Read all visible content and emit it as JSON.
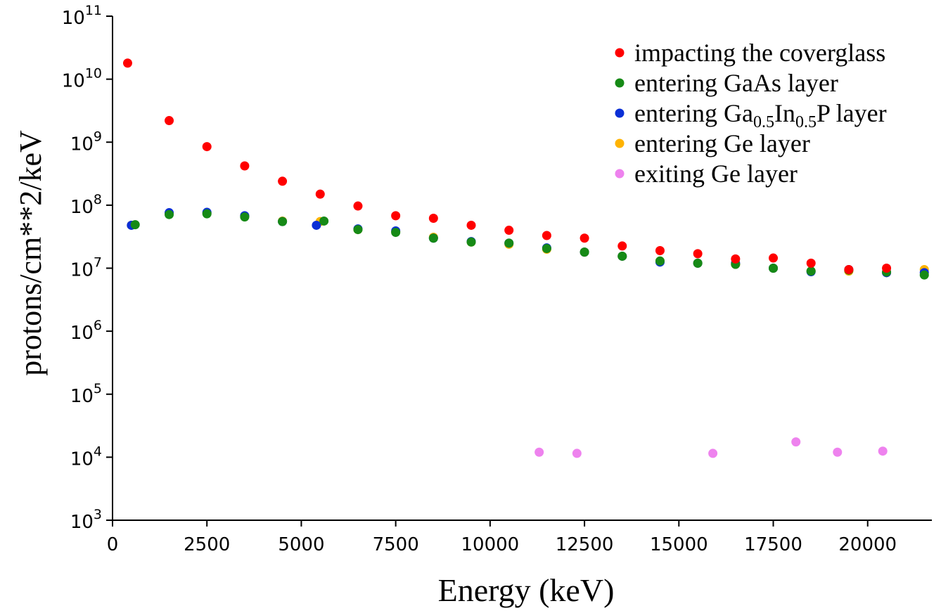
{
  "chart_data": {
    "type": "scatter",
    "title": "",
    "xlabel": "Energy (keV)",
    "ylabel": "protons/cm**2/keV",
    "xscale": "linear",
    "yscale": "log",
    "xlim": [
      0,
      21700
    ],
    "ylim_exponent": [
      3,
      11
    ],
    "x_ticks": [
      0,
      2500,
      5000,
      7500,
      10000,
      12500,
      15000,
      17500,
      20000
    ],
    "x_tick_labels": [
      "0",
      "2500",
      "5000",
      "7500",
      "10000",
      "12500",
      "15000",
      "17500",
      "20000"
    ],
    "y_ticks": [
      {
        "exp": 3,
        "base": "10",
        "sup": "3"
      },
      {
        "exp": 4,
        "base": "10",
        "sup": "4"
      },
      {
        "exp": 5,
        "base": "10",
        "sup": "5"
      },
      {
        "exp": 6,
        "base": "10",
        "sup": "6"
      },
      {
        "exp": 7,
        "base": "10",
        "sup": "7"
      },
      {
        "exp": 8,
        "base": "10",
        "sup": "8"
      },
      {
        "exp": 9,
        "base": "10",
        "sup": "9"
      },
      {
        "exp": 10,
        "base": "10",
        "sup": "10"
      },
      {
        "exp": 11,
        "base": "10",
        "sup": "11"
      }
    ],
    "legend_position": "top-right",
    "series": [
      {
        "name": "entering Ge layer",
        "legend_parts": [
          {
            "t": "entering Ge layer"
          }
        ],
        "color": "#ffb300",
        "x": [
          500,
          1500,
          2500,
          3500,
          4500,
          5500,
          6500,
          7500,
          8500,
          9500,
          10500,
          11500,
          12500,
          13500,
          14500,
          15500,
          16500,
          17500,
          18500,
          19500,
          20500,
          21500
        ],
        "y": [
          48000000,
          73000000,
          75000000,
          67000000,
          56000000,
          55000000,
          41000000,
          38000000,
          31000000,
          26000000,
          24000000,
          20000000,
          18000000,
          15500000,
          13000000,
          12000000,
          11500000,
          10000000,
          9000000,
          9000000,
          8500000,
          9500000
        ]
      },
      {
        "name": "entering Ga0.5In0.5P layer",
        "legend_parts": [
          {
            "t": "entering Ga"
          },
          {
            "t": "0.5",
            "sub": true
          },
          {
            "t": "In"
          },
          {
            "t": "0.5",
            "sub": true
          },
          {
            "t": "P layer"
          }
        ],
        "color": "#0a2fd6",
        "x": [
          500,
          1500,
          2500,
          3500,
          4500,
          5400,
          6500,
          7500,
          8500,
          9500,
          10500,
          11500,
          12500,
          13500,
          14500,
          15500,
          16500,
          17500,
          18500,
          19500,
          20500,
          21500
        ],
        "y": [
          48000000,
          76000000,
          77000000,
          68000000,
          55000000,
          48000000,
          42000000,
          39000000,
          30000000,
          26500000,
          25000000,
          21000000,
          18000000,
          15500000,
          12500000,
          12000000,
          12000000,
          10000000,
          8800000,
          9500000,
          8500000,
          8500000
        ]
      },
      {
        "name": "entering GaAs layer",
        "legend_parts": [
          {
            "t": "entering GaAs layer"
          }
        ],
        "color": "#168a16",
        "x": [
          600,
          1500,
          2500,
          3500,
          4500,
          5600,
          6500,
          7500,
          8500,
          9500,
          10500,
          11500,
          12500,
          13500,
          14500,
          15500,
          16500,
          17500,
          18500,
          19500,
          20500,
          21500
        ],
        "y": [
          49000000,
          71000000,
          73000000,
          65000000,
          55000000,
          56000000,
          41000000,
          37000000,
          30000000,
          26000000,
          25000000,
          20500000,
          18000000,
          15500000,
          13000000,
          12000000,
          11500000,
          10000000,
          9000000,
          9300000,
          8700000,
          7800000
        ]
      },
      {
        "name": "impacting the coverglass",
        "legend_parts": [
          {
            "t": "impacting the coverglass"
          }
        ],
        "color": "#ff0000",
        "x": [
          400,
          1500,
          2500,
          3500,
          4500,
          5500,
          6500,
          7500,
          8500,
          9500,
          10500,
          11500,
          12500,
          13500,
          14500,
          15500,
          16500,
          17500,
          18500,
          19500,
          20500
        ],
        "y": [
          18000000000,
          2200000000,
          850000000,
          420000000,
          240000000,
          150000000,
          97000000,
          68000000,
          62000000,
          48000000,
          40000000,
          33000000,
          30000000,
          22500000,
          19000000,
          17000000,
          14000000,
          14500000,
          12000000,
          9500000,
          10000000
        ]
      },
      {
        "name": "exiting Ge layer",
        "legend_parts": [
          {
            "t": "exiting Ge layer"
          }
        ],
        "color": "#ee82ee",
        "x": [
          11300,
          12300,
          15900,
          18100,
          19200,
          20400
        ],
        "y": [
          12000,
          11500,
          11500,
          17500,
          12000,
          12500
        ]
      }
    ],
    "legend_order": [
      3,
      2,
      1,
      0,
      4
    ]
  }
}
